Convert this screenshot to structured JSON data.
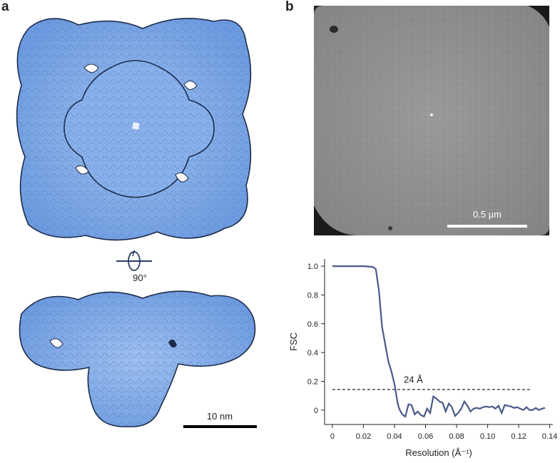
{
  "panel_a": {
    "letter": "a",
    "rotation_label": "90°",
    "scale_bar_label": "10 nm",
    "map_color": "#7aa6e6",
    "outline_color": "#1b2a4a"
  },
  "panel_b": {
    "letter": "b",
    "scale_bar_label": "0.5 µm",
    "micrograph_color": "#8e8e8e"
  },
  "chart_data": {
    "type": "line",
    "title": "",
    "xlabel": "Resolution (Å⁻¹)",
    "ylabel": "FSC",
    "xlim": [
      -0.005,
      0.142
    ],
    "ylim": [
      -0.1,
      1.05
    ],
    "xticks": [
      "0",
      "0.02",
      "0.04",
      "0.06",
      "0.08",
      "0.10",
      "0.12",
      "0.14"
    ],
    "yticks": [
      "0",
      "0.2",
      "0.4",
      "0.6",
      "0.8",
      "1.0"
    ],
    "grid": false,
    "line_color": "#4a5a8a",
    "series": [
      {
        "name": "",
        "x": [
          0,
          0.01,
          0.02,
          0.026,
          0.028,
          0.03,
          0.032,
          0.034,
          0.036,
          0.038,
          0.04,
          0.042,
          0.043,
          0.045,
          0.047,
          0.049,
          0.051,
          0.053,
          0.055,
          0.057,
          0.059,
          0.061,
          0.063,
          0.065,
          0.067,
          0.069,
          0.071,
          0.073,
          0.075,
          0.077,
          0.079,
          0.081,
          0.083,
          0.085,
          0.087,
          0.089,
          0.091,
          0.093,
          0.095,
          0.097,
          0.099,
          0.101,
          0.103,
          0.105,
          0.107,
          0.109,
          0.111,
          0.113,
          0.115,
          0.117,
          0.119,
          0.121,
          0.123,
          0.125,
          0.127,
          0.129,
          0.131,
          0.133,
          0.135,
          0.137
        ],
        "y": [
          1.0,
          1.0,
          1.0,
          0.995,
          0.98,
          0.83,
          0.58,
          0.46,
          0.34,
          0.27,
          0.18,
          0.05,
          0.01,
          -0.03,
          -0.045,
          0.04,
          0.035,
          -0.03,
          -0.01,
          -0.035,
          -0.045,
          0.01,
          -0.02,
          0.095,
          0.08,
          0.06,
          0.05,
          -0.01,
          0.045,
          0.02,
          -0.04,
          -0.02,
          0.01,
          0.06,
          0.03,
          -0.01,
          0.01,
          0.015,
          0.01,
          0.02,
          0.025,
          0.02,
          0.025,
          0.01,
          0.03,
          -0.02,
          0.035,
          0.03,
          0.025,
          0.015,
          0.02,
          0.01,
          0.0,
          0.02,
          0.0,
          0.0,
          0.015,
          0.0,
          0.01,
          0.015
        ]
      }
    ],
    "threshold": {
      "y": 0.143,
      "x_start": 0,
      "x_end": 0.128
    },
    "annotation": {
      "text": "24 Å",
      "x": 0.046,
      "y": 0.19
    }
  }
}
